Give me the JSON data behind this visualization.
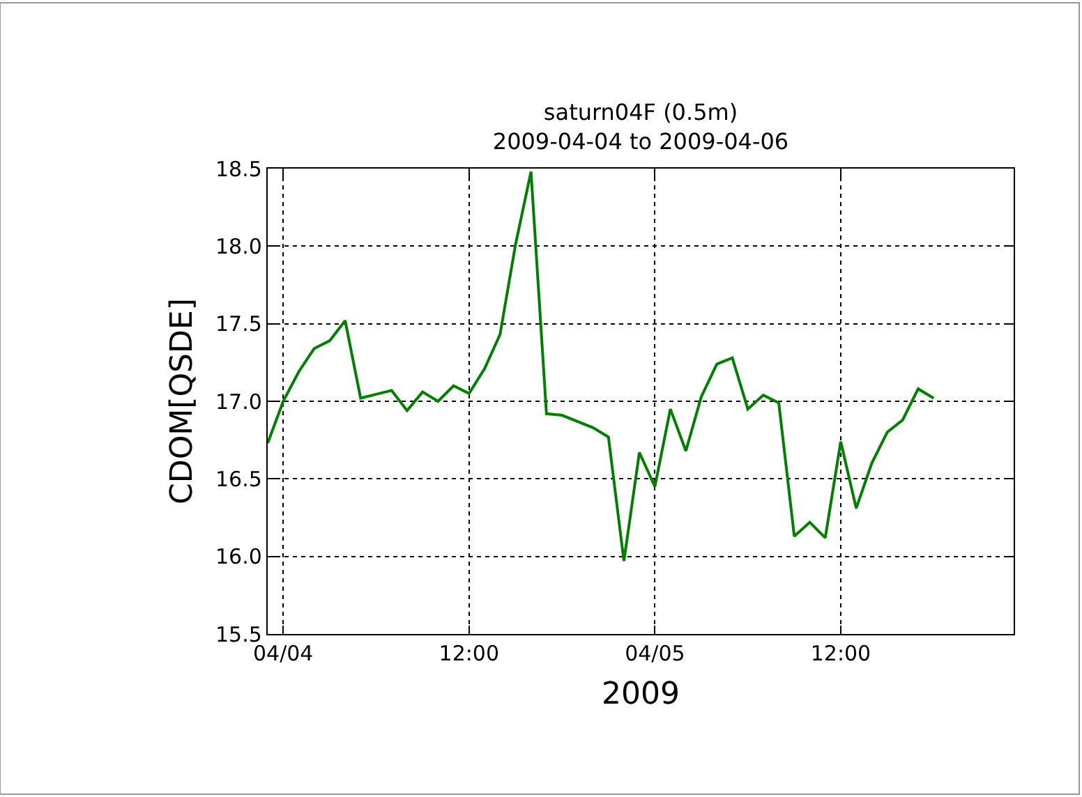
{
  "chart_data": {
    "type": "line",
    "title": "saturn04F (0.5m)",
    "subtitle": "2009-04-04 to 2009-04-06",
    "xlabel": "2009",
    "ylabel": "CDOM[QSDE]",
    "x": [
      "2009-04-03T23:00",
      "2009-04-04T00:00",
      "2009-04-04T01:00",
      "2009-04-04T02:00",
      "2009-04-04T03:00",
      "2009-04-04T04:00",
      "2009-04-04T05:00",
      "2009-04-04T07:00",
      "2009-04-04T08:00",
      "2009-04-04T09:00",
      "2009-04-04T10:00",
      "2009-04-04T11:00",
      "2009-04-04T12:00",
      "2009-04-04T13:00",
      "2009-04-04T14:00",
      "2009-04-04T15:00",
      "2009-04-04T16:00",
      "2009-04-04T17:00",
      "2009-04-04T18:00",
      "2009-04-04T20:00",
      "2009-04-04T21:00",
      "2009-04-04T22:00",
      "2009-04-04T23:00",
      "2009-04-05T00:00",
      "2009-04-05T01:00",
      "2009-04-05T02:00",
      "2009-04-05T03:00",
      "2009-04-05T04:00",
      "2009-04-05T05:00",
      "2009-04-05T06:00",
      "2009-04-05T07:00",
      "2009-04-05T08:00",
      "2009-04-05T09:00",
      "2009-04-05T10:00",
      "2009-04-05T11:00",
      "2009-04-05T12:00",
      "2009-04-05T13:00",
      "2009-04-05T14:00",
      "2009-04-05T15:00",
      "2009-04-05T16:00",
      "2009-04-05T17:00",
      "2009-04-05T18:00"
    ],
    "series": [
      {
        "color": "#008000",
        "values": [
          16.73,
          17.0,
          17.19,
          17.34,
          17.39,
          17.52,
          17.02,
          17.07,
          16.94,
          17.06,
          17.0,
          17.1,
          17.05,
          17.21,
          17.43,
          18.01,
          18.48,
          16.92,
          16.91,
          16.83,
          16.77,
          15.97,
          16.67,
          16.45,
          16.95,
          16.68,
          17.03,
          17.24,
          17.28,
          16.95,
          17.04,
          16.99,
          16.13,
          16.22,
          16.12,
          16.74,
          16.31,
          16.6,
          16.8,
          16.88,
          17.08,
          17.02
        ]
      }
    ],
    "xlim": [
      "2009-04-03T23:00",
      "2009-04-05T23:10"
    ],
    "xticks": [
      {
        "value": "2009-04-04T00:00",
        "label": "04/04"
      },
      {
        "value": "2009-04-04T12:00",
        "label": "12:00"
      },
      {
        "value": "2009-04-05T00:00",
        "label": "04/05"
      },
      {
        "value": "2009-04-05T12:00",
        "label": "12:00"
      }
    ],
    "ylim": [
      15.5,
      18.5
    ],
    "yticks": [
      15.5,
      {
        "value": 16,
        "label": "16.0"
      },
      16.5,
      {
        "value": 17,
        "label": "17.0"
      },
      17.5,
      {
        "value": 18,
        "label": "18.0"
      },
      18.5
    ],
    "grid": true,
    "marker": "none",
    "line_style": "solid"
  }
}
